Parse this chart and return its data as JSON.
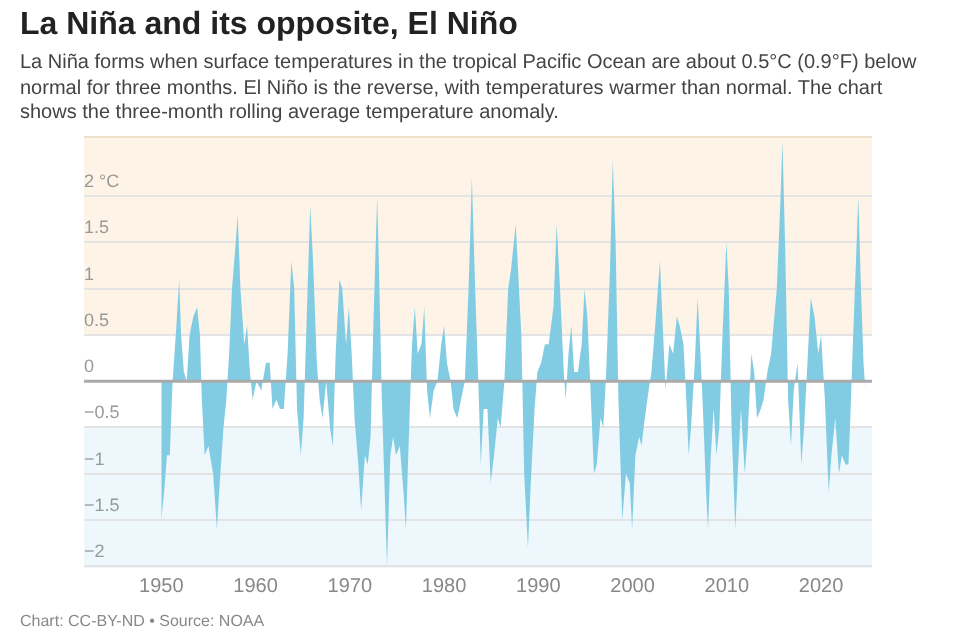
{
  "chart_data": {
    "type": "area",
    "title": "La Niña and its opposite, El Niño",
    "subtitle": "La Niña forms when surface temperatures in the tropical Pacific Ocean are about 0.5°C (0.9°F) below normal for three months. El Niño is the reverse, with temperatures warmer than normal. The chart shows the three-month rolling average temperature anomaly.",
    "annotations": [
      "Chart: CC-BY-ND • Source: NOAA"
    ],
    "x": [
      1950.0,
      1950.3,
      1950.6,
      1950.9,
      1951.2,
      1951.6,
      1951.9,
      1952.1,
      1952.4,
      1952.7,
      1953.0,
      1953.4,
      1953.8,
      1954.1,
      1954.3,
      1954.6,
      1955.0,
      1955.5,
      1955.9,
      1956.2,
      1956.6,
      1956.9,
      1957.2,
      1957.5,
      1957.9,
      1958.1,
      1958.4,
      1958.8,
      1959.1,
      1959.4,
      1959.7,
      1960.1,
      1960.6,
      1961.1,
      1961.5,
      1961.8,
      1962.2,
      1962.6,
      1963.0,
      1963.4,
      1963.8,
      1964.1,
      1964.4,
      1964.8,
      1965.1,
      1965.4,
      1965.8,
      1966.1,
      1966.5,
      1966.8,
      1967.1,
      1967.5,
      1967.9,
      1968.2,
      1968.5,
      1968.9,
      1969.2,
      1969.6,
      1969.9,
      1970.2,
      1970.5,
      1970.9,
      1971.2,
      1971.6,
      1971.9,
      1972.2,
      1972.5,
      1972.9,
      1973.1,
      1973.4,
      1973.7,
      1973.95,
      1974.3,
      1974.6,
      1974.9,
      1975.3,
      1975.7,
      1975.95,
      1976.3,
      1976.6,
      1976.9,
      1977.2,
      1977.6,
      1977.9,
      1978.2,
      1978.5,
      1978.9,
      1979.3,
      1979.7,
      1980.0,
      1980.3,
      1980.7,
      1981.0,
      1981.4,
      1981.8,
      1982.2,
      1982.6,
      1982.95,
      1983.3,
      1983.6,
      1983.9,
      1984.2,
      1984.6,
      1984.95,
      1985.3,
      1985.7,
      1986.0,
      1986.4,
      1986.8,
      1987.1,
      1987.6,
      1987.9,
      1988.2,
      1988.5,
      1988.9,
      1989.2,
      1989.6,
      1989.9,
      1990.3,
      1990.7,
      1991.1,
      1991.6,
      1991.95,
      1992.3,
      1992.7,
      1992.9,
      1993.2,
      1993.5,
      1993.8,
      1994.2,
      1994.6,
      1994.9,
      1995.2,
      1995.5,
      1995.9,
      1996.2,
      1996.6,
      1996.9,
      1997.2,
      1997.6,
      1997.9,
      1998.2,
      1998.5,
      1998.9,
      1999.3,
      1999.7,
      1999.95,
      2000.3,
      2000.7,
      2000.95,
      2001.3,
      2001.7,
      2002.0,
      2002.4,
      2002.9,
      2003.2,
      2003.5,
      2003.9,
      2004.3,
      2004.7,
      2005.0,
      2005.4,
      2005.7,
      2005.95,
      2006.2,
      2006.6,
      2006.9,
      2007.2,
      2007.5,
      2007.8,
      2008.0,
      2008.3,
      2008.6,
      2008.9,
      2009.2,
      2009.5,
      2009.95,
      2010.2,
      2010.5,
      2010.9,
      2011.2,
      2011.5,
      2011.9,
      2012.2,
      2012.6,
      2012.9,
      2013.2,
      2013.6,
      2013.9,
      2014.3,
      2014.7,
      2014.95,
      2015.3,
      2015.7,
      2015.9,
      2016.2,
      2016.5,
      2016.8,
      2017.1,
      2017.5,
      2017.9,
      2018.2,
      2018.6,
      2018.9,
      2019.3,
      2019.7,
      2020.0,
      2020.4,
      2020.8,
      2021.1,
      2021.5,
      2021.9,
      2022.2,
      2022.6,
      2022.9,
      2023.1,
      2023.4,
      2023.7,
      2023.95,
      2024.2,
      2024.5,
      2024.7
    ],
    "series": [
      {
        "color": "#82cce3",
        "values": [
          -1.5,
          -1.2,
          -0.8,
          -0.8,
          0,
          0.6,
          1.1,
          0.5,
          0.1,
          0,
          0.5,
          0.7,
          0.8,
          0.5,
          -0.2,
          -0.8,
          -0.7,
          -1.0,
          -1.6,
          -1.1,
          -0.5,
          -0.2,
          0.3,
          1.0,
          1.5,
          1.8,
          1.0,
          0.4,
          0.6,
          0.1,
          -0.2,
          0,
          -0.1,
          0.2,
          0.2,
          -0.3,
          -0.2,
          -0.3,
          -0.3,
          0.3,
          1.3,
          1.0,
          -0.3,
          -0.8,
          -0.4,
          0.6,
          1.9,
          1.3,
          0.2,
          -0.2,
          -0.4,
          0,
          -0.5,
          -0.7,
          0.3,
          1.1,
          1.0,
          0.4,
          0.8,
          0.3,
          -0.4,
          -0.9,
          -1.4,
          -0.8,
          -0.9,
          -0.6,
          0.6,
          2.0,
          1.2,
          -0.2,
          -1.2,
          -2.0,
          -0.8,
          -0.6,
          -0.8,
          -0.7,
          -1.2,
          -1.6,
          -0.5,
          0.4,
          0.8,
          0.3,
          0.4,
          0.8,
          -0.1,
          -0.4,
          -0.1,
          0,
          0.4,
          0.6,
          0.2,
          0,
          -0.3,
          -0.4,
          -0.2,
          0,
          1.0,
          2.2,
          1.0,
          0.1,
          -0.9,
          -0.3,
          -0.3,
          -1.1,
          -0.8,
          -0.4,
          -0.5,
          0,
          1.0,
          1.2,
          1.7,
          1.1,
          0.5,
          -1.0,
          -1.8,
          -1.1,
          -0.3,
          0.1,
          0.2,
          0.4,
          0.4,
          0.8,
          1.7,
          1.0,
          0.1,
          -0.2,
          0.3,
          0.6,
          0.1,
          0.1,
          0.4,
          1.0,
          0.7,
          0,
          -1.0,
          -0.9,
          -0.4,
          -0.5,
          0.1,
          1.2,
          2.4,
          1.5,
          -0.2,
          -1.5,
          -1.0,
          -1.1,
          -1.6,
          -0.8,
          -0.6,
          -0.7,
          -0.4,
          -0.1,
          0.1,
          0.6,
          1.3,
          0.6,
          -0.1,
          0.4,
          0.3,
          0.7,
          0.6,
          0.4,
          -0.2,
          -0.8,
          -0.5,
          0.2,
          0.9,
          0.3,
          -0.4,
          -1.2,
          -1.6,
          -0.8,
          -0.3,
          -0.8,
          -0.5,
          0.4,
          1.5,
          1.0,
          -0.5,
          -1.6,
          -0.9,
          -0.3,
          -1.0,
          -0.6,
          0.3,
          0.1,
          -0.4,
          -0.3,
          -0.2,
          0.1,
          0.3,
          0.6,
          1.0,
          2.0,
          2.6,
          1.4,
          -0.2,
          -0.7,
          -0.1,
          0.2,
          -0.9,
          -0.5,
          0.3,
          0.9,
          0.7,
          0.3,
          0.5,
          -0.2,
          -1.2,
          -0.8,
          -0.4,
          -1.0,
          -0.8,
          -0.9,
          -0.9,
          -0.4,
          0.5,
          1.3,
          2.0,
          1.1,
          0.2,
          -0.1
        ]
      }
    ],
    "xlim": [
      1941.8,
      2025.4
    ],
    "xticks": [
      1950,
      1960,
      1970,
      1980,
      1990,
      2000,
      2010,
      2020
    ],
    "ylim": [
      -2.02,
      2.65
    ],
    "yticks": [
      {
        "value": -2,
        "label": "−2"
      },
      {
        "value": -1.5,
        "label": "−1.5"
      },
      {
        "value": -1,
        "label": "−1"
      },
      {
        "value": -0.5,
        "label": "−0.5"
      },
      0,
      0.5,
      1,
      1.5,
      {
        "value": 2,
        "label": "2 °C"
      }
    ],
    "bands": [
      {
        "axis": "y",
        "from": 0.5,
        "to": 2.65,
        "color": "#fdf3e7"
      },
      {
        "axis": "y",
        "from": -2.02,
        "to": -0.5,
        "color": "#eef7fc"
      }
    ],
    "ref_lines": [
      {
        "axis": "y",
        "value": 0,
        "color": "#aaaaaa"
      }
    ],
    "grid": "y",
    "legend": false
  }
}
